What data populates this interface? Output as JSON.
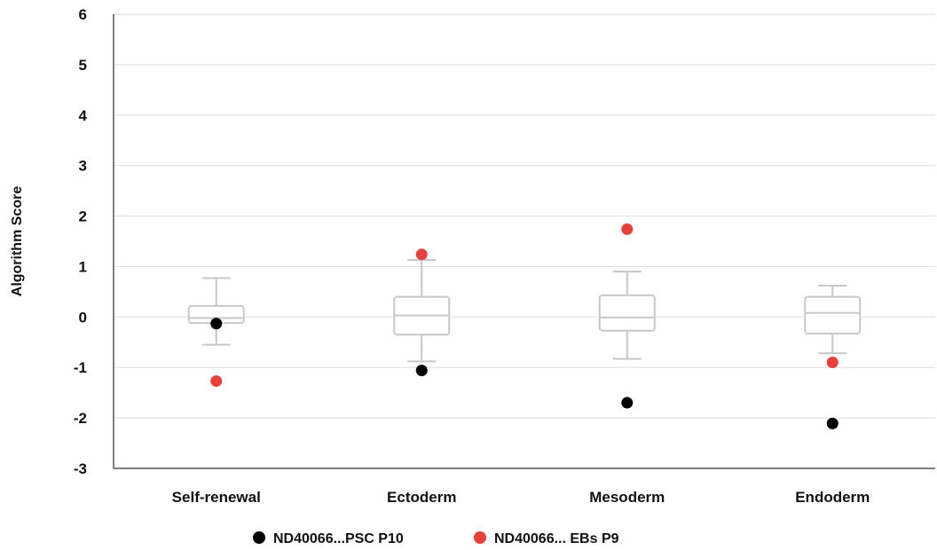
{
  "chart_data": {
    "type": "box",
    "ylabel": "Algorithm Score",
    "xlabel": "",
    "ylim": [
      -3,
      6
    ],
    "yticks": [
      -3,
      -2,
      -1,
      0,
      1,
      2,
      3,
      4,
      5,
      6
    ],
    "grid": true,
    "categories": [
      "Self-renewal",
      "Ectoderm",
      "Mesoderm",
      "Endoderm"
    ],
    "boxes": [
      {
        "category": "Self-renewal",
        "whisker_low": -0.55,
        "q1": -0.12,
        "median": -0.02,
        "q3": 0.22,
        "whisker_high": 0.77
      },
      {
        "category": "Ectoderm",
        "whisker_low": -0.88,
        "q1": -0.35,
        "median": 0.03,
        "q3": 0.4,
        "whisker_high": 1.13
      },
      {
        "category": "Mesoderm",
        "whisker_low": -0.83,
        "q1": -0.27,
        "median": -0.01,
        "q3": 0.43,
        "whisker_high": 0.9
      },
      {
        "category": "Endoderm",
        "whisker_low": -0.72,
        "q1": -0.33,
        "median": 0.08,
        "q3": 0.4,
        "whisker_high": 0.62
      }
    ],
    "series": [
      {
        "name": "ND40066...PSC P10",
        "color": "#000000",
        "values": [
          -0.13,
          -1.06,
          -1.7,
          -2.11
        ]
      },
      {
        "name": "ND40066... EBs P9",
        "color": "#e8403a",
        "values": [
          -1.27,
          1.24,
          1.74,
          -0.9
        ]
      }
    ],
    "legend_position": "bottom-center",
    "colors": {
      "box_stroke": "#c8c8c8",
      "grid": "#e3e3e3",
      "axis": "#555555"
    }
  }
}
